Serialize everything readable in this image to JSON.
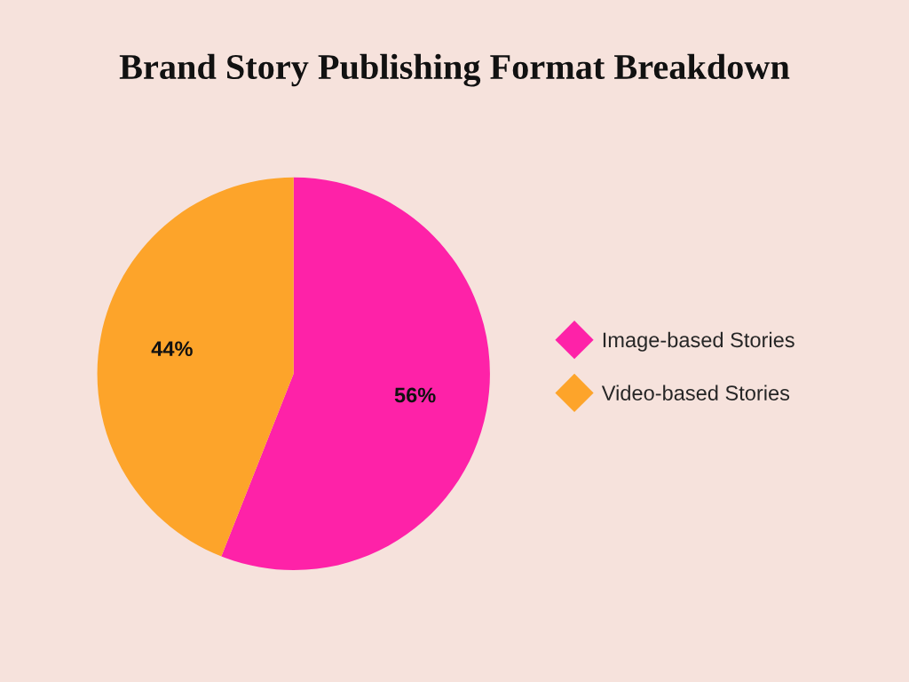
{
  "chart_data": {
    "type": "pie",
    "title": "Brand Story Publishing Format Breakdown",
    "categories": [
      "Image-based Stories",
      "Video-based Stories"
    ],
    "values": [
      56,
      44
    ],
    "colors": [
      "#fe22a8",
      "#fda42a"
    ],
    "value_labels": [
      "56%",
      "44%"
    ],
    "legend": "right",
    "marker": "diamond"
  }
}
